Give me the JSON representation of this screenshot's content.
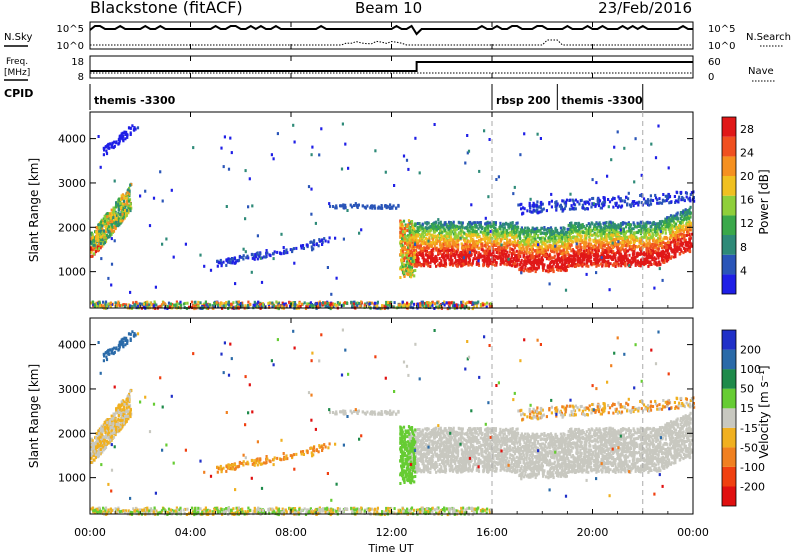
{
  "header": {
    "station": "Blackstone (fitACF)",
    "beam": "Beam 10",
    "date": "23/Feb/2016"
  },
  "aux_panels": {
    "nsky_label": "N.Sky",
    "nsearch_label": "N.Search",
    "freq_label_1": "Freq.",
    "freq_label_2": "[MHz]",
    "nave_label": "Nave",
    "cpid_label": "CPID",
    "nsky_ticks": [
      "10^5",
      "10^0"
    ],
    "nsearch_ticks": [
      "10^5",
      "10^0"
    ],
    "freq_ticks": [
      "18",
      "8"
    ],
    "nave_ticks": [
      "60",
      "0"
    ]
  },
  "cpid_segments": [
    {
      "label": "themis -3300",
      "start_hour": 0
    },
    {
      "label": "rbsp 200",
      "start_hour": 16
    },
    {
      "label": "themis -3300",
      "start_hour": 18.6
    }
  ],
  "chart_data": [
    {
      "type": "heatmap",
      "name": "power",
      "ylabel": "Slant Range [km]",
      "xlabel": "Time UT",
      "xlim": [
        0,
        24
      ],
      "ylim": [
        180,
        4600
      ],
      "yticks": [
        "1000",
        "2000",
        "3000",
        "4000"
      ],
      "colorbar_label": "Power [dB]",
      "colorbar_ticks": [
        "4",
        "8",
        "12",
        "16",
        "20",
        "24",
        "28"
      ],
      "colorbar_range": [
        0,
        30
      ],
      "colors": [
        "#1f1fe6",
        "#2a55b8",
        "#2e8a78",
        "#3aa84a",
        "#8fcf3a",
        "#f0c020",
        "#f59020",
        "#f05020",
        "#e01818"
      ]
    },
    {
      "type": "heatmap",
      "name": "velocity",
      "ylabel": "Slant Range [km]",
      "xlabel": "Time UT",
      "xlim": [
        0,
        24
      ],
      "ylim": [
        180,
        4600
      ],
      "yticks": [
        "1000",
        "2000",
        "3000",
        "4000"
      ],
      "colorbar_label": "Velocity [m s⁻¹]",
      "colorbar_ticks": [
        "200",
        "100",
        "50",
        "15",
        "-15",
        "-50",
        "-100",
        "-200"
      ],
      "colors": [
        "#2030c8",
        "#2a6aa8",
        "#1e8a4a",
        "#66cc33",
        "#c8c8c0",
        "#f0b020",
        "#f08020",
        "#f04010",
        "#e01010"
      ]
    }
  ],
  "time_axis": {
    "ticks": [
      "00:00",
      "04:00",
      "08:00",
      "12:00",
      "16:00",
      "20:00",
      "00:00"
    ],
    "label": "Time UT"
  }
}
